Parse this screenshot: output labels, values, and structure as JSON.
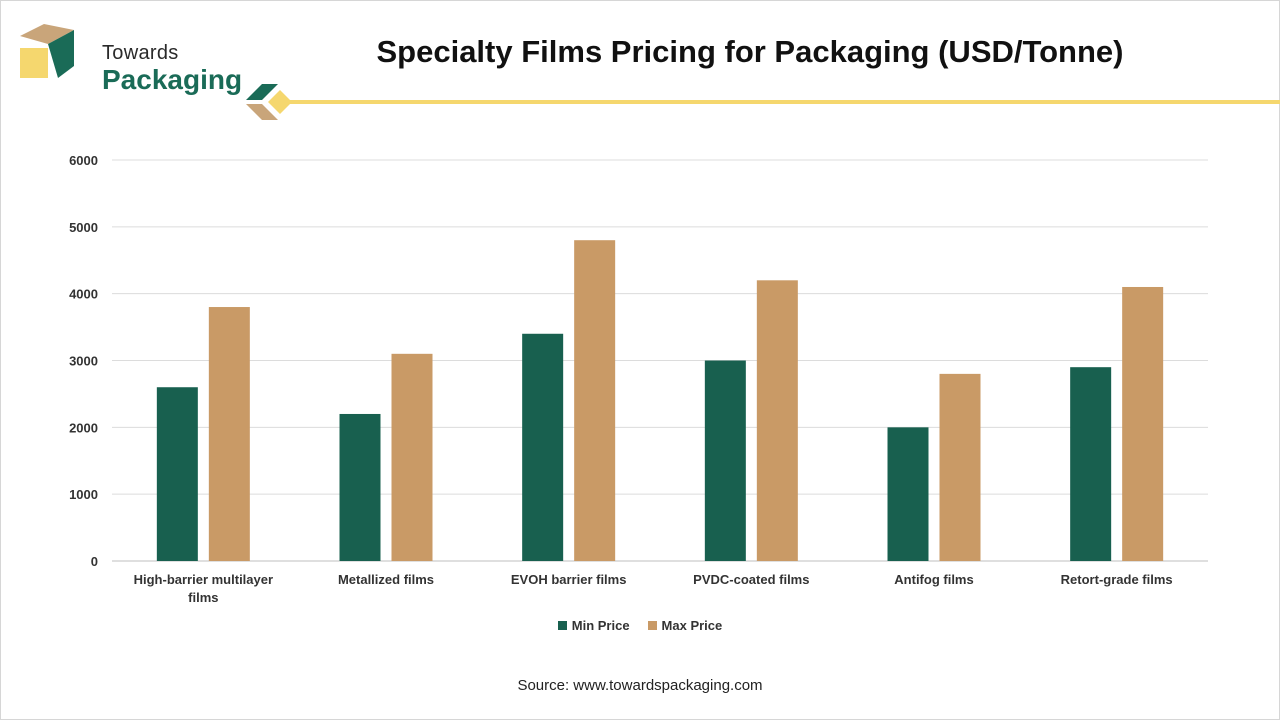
{
  "brand": {
    "line1": "Towards",
    "line2": "Packaging"
  },
  "colors": {
    "min": "#18604f",
    "max": "#c99a66",
    "accent": "#f5d76e",
    "logo_green": "#1a6b57",
    "logo_tan": "#c9a57a"
  },
  "chart_data": {
    "type": "bar",
    "title": "Specialty Films Pricing for Packaging (USD/Tonne)",
    "categories": [
      "High-barrier multilayer films",
      "Metallized films",
      "EVOH barrier films",
      "PVDC-coated films",
      "Antifog films",
      "Retort-grade films"
    ],
    "series": [
      {
        "name": "Min Price",
        "values": [
          2600,
          2200,
          3400,
          3000,
          2000,
          2900
        ]
      },
      {
        "name": "Max Price",
        "values": [
          3800,
          3100,
          4800,
          4200,
          2800,
          4100
        ]
      }
    ],
    "ylim": [
      0,
      6000
    ],
    "yticks": [
      0,
      1000,
      2000,
      3000,
      4000,
      5000,
      6000
    ],
    "grid": true,
    "legend_position": "bottom"
  },
  "source": "Source: www.towardspackaging.com"
}
